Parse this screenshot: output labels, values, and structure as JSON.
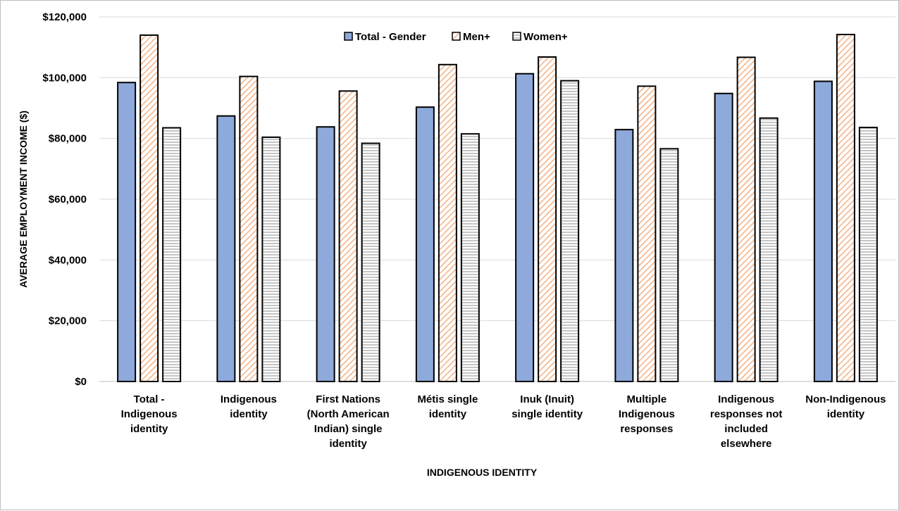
{
  "chart_data": {
    "type": "bar",
    "categories": [
      [
        "Total -",
        "Indigenous",
        "identity"
      ],
      [
        "Indigenous",
        "identity"
      ],
      [
        "First Nations",
        "(North American",
        "Indian) single",
        "identity"
      ],
      [
        "Métis single",
        "identity"
      ],
      [
        "Inuk (Inuit)",
        "single identity"
      ],
      [
        "Multiple",
        "Indigenous",
        "responses"
      ],
      [
        "Indigenous",
        "responses not",
        "included",
        "elsewhere"
      ],
      [
        "Non-Indigenous",
        "identity"
      ]
    ],
    "series": [
      {
        "name": "Total - Gender",
        "values": [
          98400,
          87400,
          83800,
          90300,
          101300,
          82900,
          94800,
          98800
        ]
      },
      {
        "name": "Men+",
        "values": [
          114000,
          100400,
          95600,
          104300,
          106800,
          97200,
          106700,
          114200
        ]
      },
      {
        "name": "Women+",
        "values": [
          83500,
          80400,
          78400,
          81500,
          99000,
          76600,
          86700,
          83600
        ]
      }
    ],
    "xlabel": "INDIGENOUS IDENTITY",
    "ylabel": "AVERAGE EMPLOYMENT INCOME ($)",
    "ylim": [
      0,
      120000
    ],
    "yticks": [
      "$0",
      "$20,000",
      "$40,000",
      "$60,000",
      "$80,000",
      "$100,000",
      "$120,000"
    ],
    "grid": true,
    "legend_position": "top-center",
    "colors": {
      "total_fill": "#8ea9db",
      "men_fill": "#ffffff",
      "men_hatch": "#f4b183",
      "women_fill": "#ffffff",
      "women_hatch": "#a6a6a6",
      "bar_border": "#000000",
      "grid": "#d9d9d9"
    }
  }
}
